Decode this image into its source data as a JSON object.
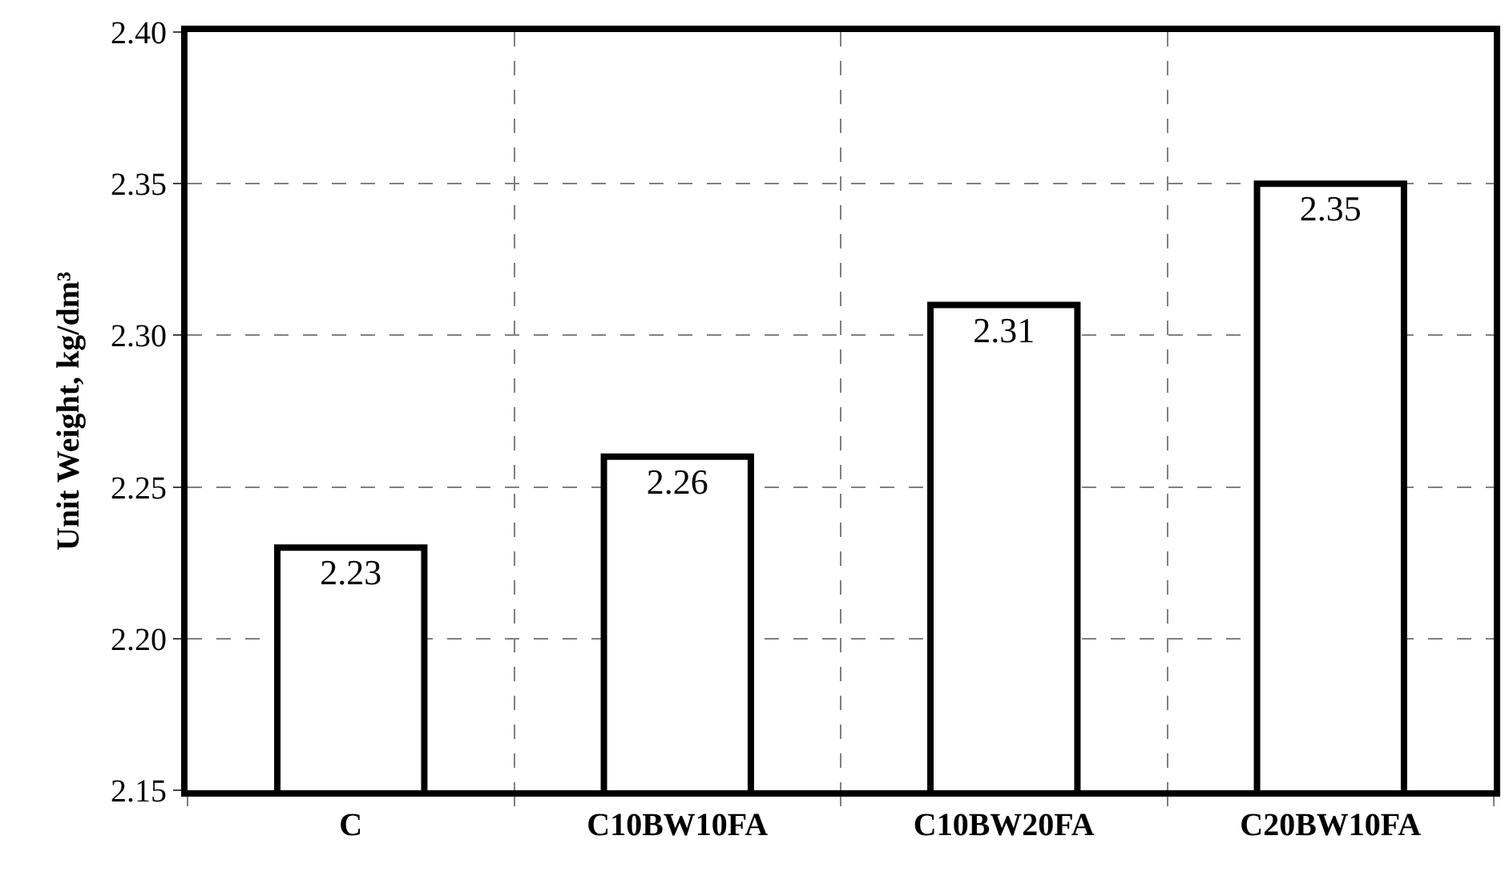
{
  "chart_data": {
    "type": "bar",
    "ylabel": "Unit Weight, kg/dm³",
    "categories": [
      "C",
      "C10BW10FA",
      "C10BW20FA",
      "C20BW10FA"
    ],
    "values": [
      2.23,
      2.26,
      2.31,
      2.35
    ],
    "color": "#ffffff",
    "data_labels": true,
    "ylim": [
      2.15,
      2.4
    ],
    "yticks": [
      2.15,
      {
        "value": 2.2,
        "label": "2.20"
      },
      2.25,
      {
        "value": 2.3,
        "label": "2.30"
      },
      2.35,
      {
        "value": 2.4,
        "label": "2.40"
      }
    ],
    "grid": true
  }
}
